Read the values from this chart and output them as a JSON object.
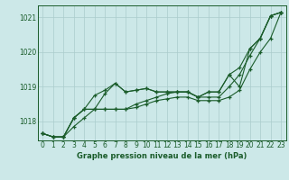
{
  "xlabel": "Graphe pression niveau de la mer (hPa)",
  "background_color": "#cce8e8",
  "line_color": "#1a5c2a",
  "grid_color": "#aacccc",
  "x_ticks": [
    0,
    1,
    2,
    3,
    4,
    5,
    6,
    7,
    8,
    9,
    10,
    11,
    12,
    13,
    14,
    15,
    16,
    17,
    18,
    19,
    20,
    21,
    22,
    23
  ],
  "y_ticks": [
    1018,
    1019,
    1020,
    1021
  ],
  "ylim": [
    1017.45,
    1021.35
  ],
  "xlim": [
    -0.5,
    23.5
  ],
  "series": [
    [
      1017.65,
      1017.55,
      1017.55,
      1017.85,
      1018.1,
      1018.35,
      1018.8,
      1019.1,
      1018.85,
      1018.9,
      1018.95,
      1018.85,
      1018.85,
      1018.85,
      1018.85,
      1018.7,
      1018.85,
      1018.85,
      1019.35,
      1019.0,
      1020.1,
      1020.4,
      1021.05,
      1021.15
    ],
    [
      1017.65,
      1017.55,
      1017.55,
      1018.1,
      1018.35,
      1018.75,
      1018.9,
      1019.1,
      1018.85,
      1018.9,
      1018.95,
      1018.85,
      1018.85,
      1018.85,
      1018.85,
      1018.7,
      1018.85,
      1018.85,
      1019.35,
      1019.55,
      1020.1,
      1020.4,
      1021.05,
      1021.15
    ],
    [
      1017.65,
      1017.55,
      1017.55,
      1018.1,
      1018.35,
      1018.35,
      1018.35,
      1018.35,
      1018.35,
      1018.5,
      1018.6,
      1018.7,
      1018.8,
      1018.85,
      1018.85,
      1018.7,
      1018.7,
      1018.7,
      1019.0,
      1019.35,
      1019.9,
      1020.4,
      1021.05,
      1021.15
    ],
    [
      1017.65,
      1017.55,
      1017.55,
      1018.1,
      1018.35,
      1018.35,
      1018.35,
      1018.35,
      1018.35,
      1018.4,
      1018.5,
      1018.6,
      1018.65,
      1018.7,
      1018.7,
      1018.6,
      1018.6,
      1018.6,
      1018.7,
      1018.9,
      1019.5,
      1020.0,
      1020.4,
      1021.15
    ]
  ],
  "tick_fontsize": 5.5,
  "xlabel_fontsize": 6.0
}
